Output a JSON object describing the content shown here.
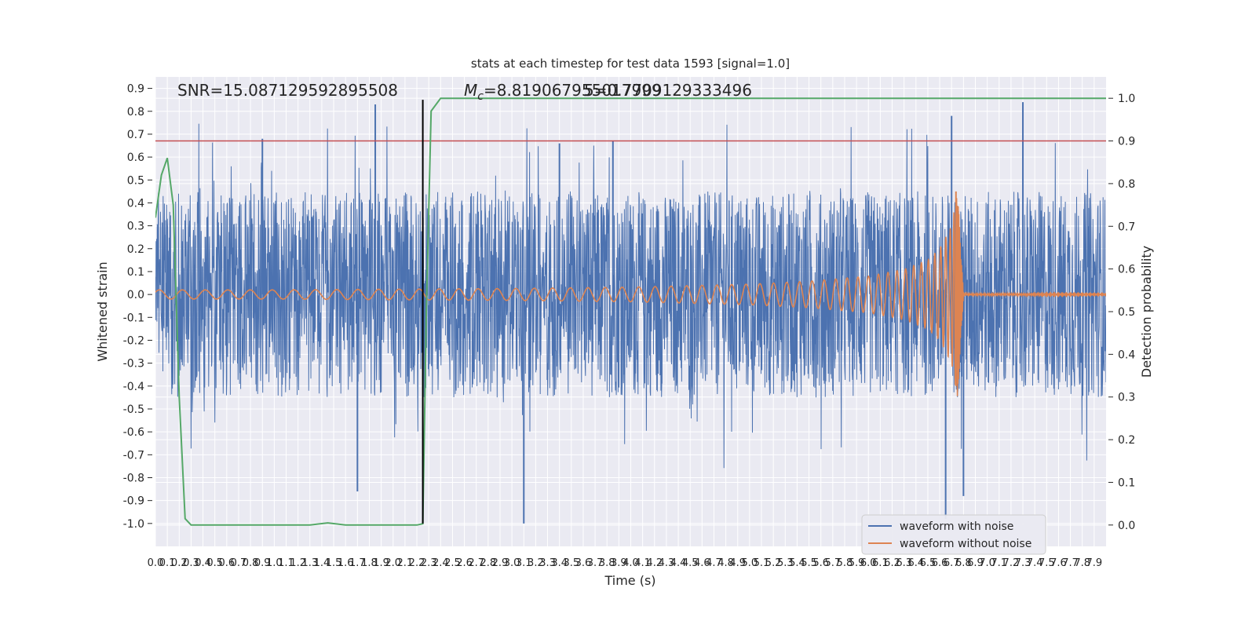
{
  "chart_data": {
    "type": "line",
    "title": "stats at each timestep for test data 1593 [signal=1.0]",
    "xlabel": "Time (s)",
    "ylabel": "Whitened strain",
    "y2label": "Detection probability",
    "xlim": [
      0.0,
      8.0
    ],
    "ylim": [
      -1.1,
      0.95
    ],
    "y2lim": [
      -0.05,
      1.05
    ],
    "x_ticks": [
      "0.0",
      "0.1",
      "0.2",
      "0.3",
      "0.4",
      "0.5",
      "0.6",
      "0.7",
      "0.8",
      "0.9",
      "1.0",
      "1.1",
      "1.2",
      "1.3",
      "1.4",
      "1.5",
      "1.6",
      "1.7",
      "1.8",
      "1.9",
      "2.0",
      "2.1",
      "2.2",
      "2.3",
      "2.4",
      "2.5",
      "2.6",
      "2.7",
      "2.8",
      "2.9",
      "3.0",
      "3.1",
      "3.2",
      "3.3",
      "3.4",
      "3.5",
      "3.6",
      "3.7",
      "3.8",
      "3.9",
      "4.0",
      "4.1",
      "4.2",
      "4.3",
      "4.4",
      "4.5",
      "4.6",
      "4.7",
      "4.8",
      "4.9",
      "5.0",
      "5.1",
      "5.2",
      "5.3",
      "5.4",
      "5.5",
      "5.6",
      "5.7",
      "5.8",
      "5.9",
      "6.0",
      "6.1",
      "6.2",
      "6.3",
      "6.4",
      "6.5",
      "6.6",
      "6.7",
      "6.8",
      "6.9",
      "7.0",
      "7.1",
      "7.2",
      "7.3",
      "7.4",
      "7.5",
      "7.6",
      "7.7",
      "7.8",
      "7.9"
    ],
    "y_ticks": [
      "0.9",
      "0.8",
      "0.7",
      "0.6",
      "0.5",
      "0.4",
      "0.3",
      "0.2",
      "0.1",
      "0.0",
      "-0.1",
      "-0.2",
      "-0.3",
      "-0.4",
      "-0.5",
      "-0.6",
      "-0.7",
      "-0.8",
      "-0.9",
      "-1.0"
    ],
    "y2_ticks": [
      "1.0",
      "0.9",
      "0.8",
      "0.7",
      "0.6",
      "0.5",
      "0.4",
      "0.3",
      "0.2",
      "0.1",
      "0.0"
    ],
    "annotations": {
      "snr": "SNR=15.087129592895508",
      "mc_symbol": "M",
      "mc_subscript": "c",
      "mc_value": "=8.819067955017999",
      "overlap_text": "5=0.7709129333496"
    },
    "legend": {
      "placement": "lower-right",
      "entries": [
        "waveform with noise",
        "waveform without noise"
      ]
    },
    "series": [
      {
        "name": "waveform with noise",
        "color": "#4c72b0",
        "description": "whitened noisy strain, ~±0.45 envelope with spikes to ±0.95",
        "peak_points": [
          [
            0.9,
            0.68
          ],
          [
            1.85,
            0.83
          ],
          [
            3.4,
            0.66
          ],
          [
            3.85,
            0.67
          ],
          [
            6.7,
            0.78
          ],
          [
            7.3,
            0.84
          ],
          [
            1.7,
            -0.86
          ],
          [
            3.1,
            -1.0
          ],
          [
            6.65,
            -0.98
          ],
          [
            6.8,
            -0.88
          ]
        ]
      },
      {
        "name": "waveform without noise",
        "color": "#dd8452",
        "description": "clean chirp; amplitude grows toward merger then rings down",
        "merger_time": 6.75,
        "merger_peak": [
          0.45,
          -0.4
        ],
        "x": [
          0.0,
          1.0,
          2.0,
          3.0,
          4.0,
          5.0,
          5.5,
          6.0,
          6.3,
          6.5,
          6.6,
          6.7,
          6.75,
          6.8,
          8.0
        ],
        "amplitude": [
          0.02,
          0.02,
          0.023,
          0.026,
          0.032,
          0.045,
          0.058,
          0.08,
          0.11,
          0.15,
          0.2,
          0.3,
          0.45,
          0.004,
          0.002
        ]
      },
      {
        "name": "detection probability",
        "axis": "right",
        "color": "#55a868",
        "x": [
          0.0,
          0.05,
          0.1,
          0.15,
          0.2,
          0.25,
          0.3,
          0.5,
          1.0,
          1.3,
          1.45,
          1.6,
          2.2,
          2.25,
          2.28,
          2.32,
          2.4,
          8.0
        ],
        "values": [
          0.72,
          0.82,
          0.86,
          0.75,
          0.3,
          0.015,
          0.0,
          0.0,
          0.0,
          0.0,
          0.005,
          0.0,
          0.0,
          0.003,
          0.5,
          0.97,
          1.0,
          1.0
        ]
      }
    ],
    "reference_lines": {
      "threshold": {
        "axis": "right",
        "value": 0.9,
        "color": "#c44e52"
      },
      "event_time": {
        "x": 2.25,
        "y_range": [
          -1.0,
          0.85
        ],
        "color": "#000000"
      }
    }
  }
}
